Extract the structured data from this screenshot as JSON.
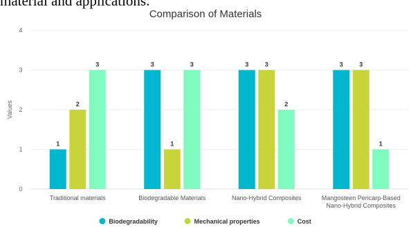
{
  "page_fragment": "material and applications.",
  "chart_data": {
    "type": "bar",
    "title": "Comparison of Materials",
    "xlabel": "",
    "ylabel": "Values",
    "ylim": [
      0,
      4
    ],
    "yticks": [
      0,
      1,
      2,
      3,
      4
    ],
    "grid": true,
    "legend_position": "bottom",
    "categories": [
      [
        "Traditional materials"
      ],
      [
        "Biodegradable Materials"
      ],
      [
        "Nano-Hybrid Composites"
      ],
      [
        "Mangosteen Pericarp-Based",
        "Nano-Hybrid Composites"
      ]
    ],
    "series": [
      {
        "name": "Biodegradability",
        "color": "#00b7d0",
        "values": [
          1,
          3,
          3,
          3
        ]
      },
      {
        "name": "Mechanical properties",
        "color": "#c8d53a",
        "values": [
          2,
          1,
          3,
          3
        ]
      },
      {
        "name": "Cost",
        "color": "#7ffbc0",
        "values": [
          3,
          3,
          2,
          1
        ]
      }
    ]
  }
}
